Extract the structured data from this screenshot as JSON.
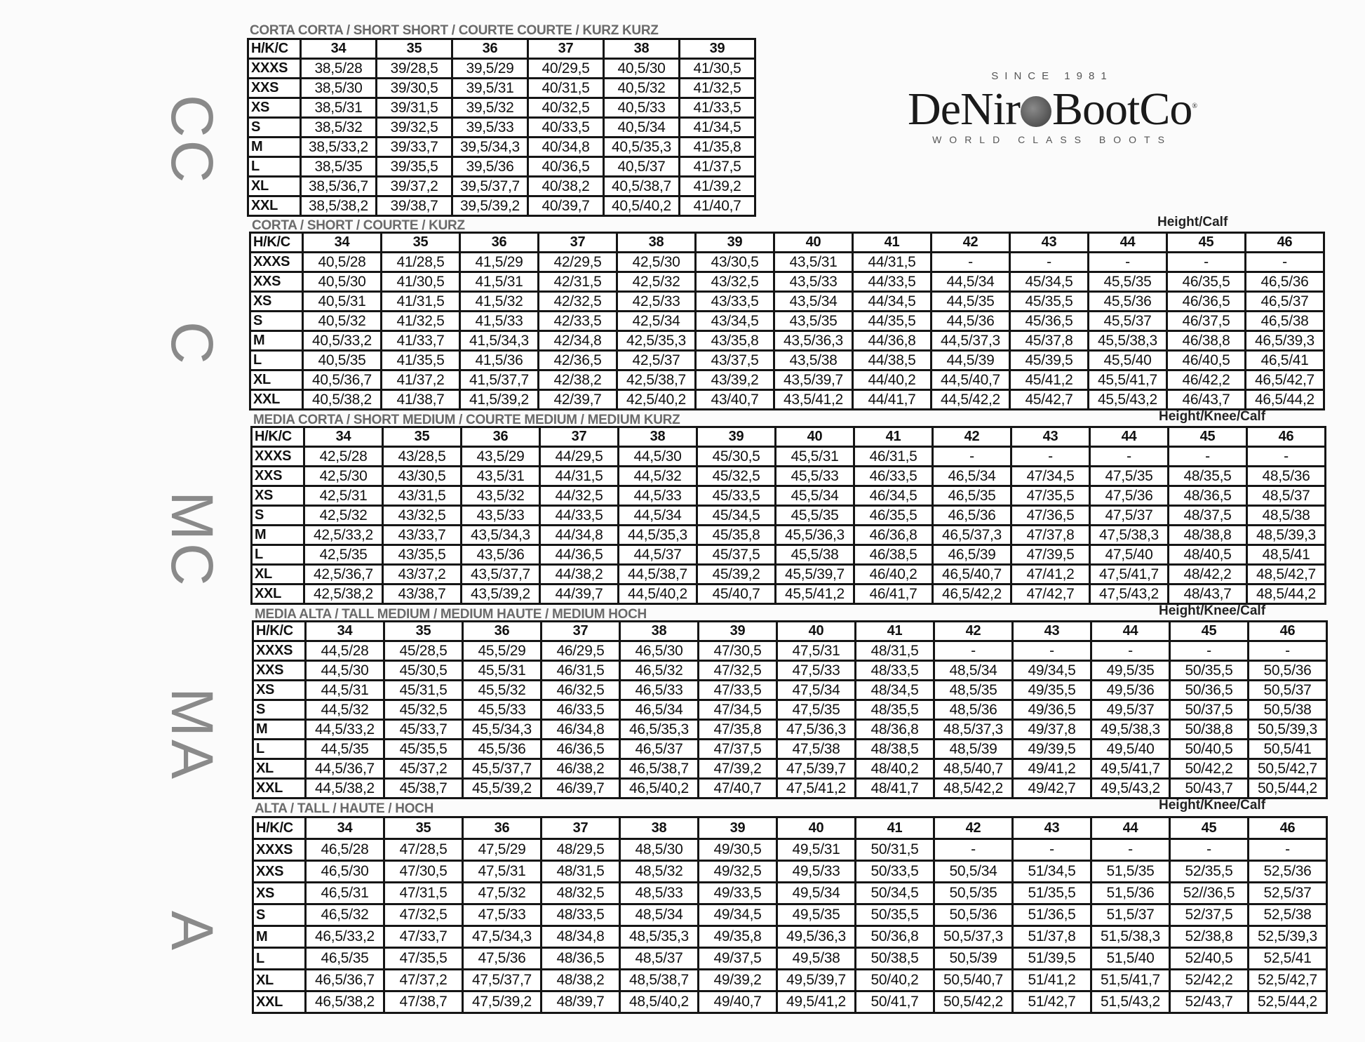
{
  "logo": {
    "since": "SINCE 1981",
    "brand_left": "DeNir",
    "brand_right": "BootCo",
    "tagline": "WORLD CLASS BOOTS"
  },
  "tables": [
    {
      "side_label": "CC",
      "title": "CORTA CORTA / SHORT SHORT / COURTE COURTE / KURZ KURZ",
      "note": "",
      "corner": "H/K/C",
      "columns": [
        "34",
        "35",
        "36",
        "37",
        "38",
        "39"
      ],
      "rows": [
        {
          "size": "XXXS",
          "values": [
            "38,5/28",
            "39/28,5",
            "39,5/29",
            "40/29,5",
            "40,5/30",
            "41/30,5"
          ]
        },
        {
          "size": "XXS",
          "values": [
            "38,5/30",
            "39/30,5",
            "39,5/31",
            "40/31,5",
            "40,5/32",
            "41/32,5"
          ]
        },
        {
          "size": "XS",
          "values": [
            "38,5/31",
            "39/31,5",
            "39,5/32",
            "40/32,5",
            "40,5/33",
            "41/33,5"
          ]
        },
        {
          "size": "S",
          "values": [
            "38,5/32",
            "39/32,5",
            "39,5/33",
            "40/33,5",
            "40,5/34",
            "41/34,5"
          ]
        },
        {
          "size": "M",
          "values": [
            "38,5/33,2",
            "39/33,7",
            "39,5/34,3",
            "40/34,8",
            "40,5/35,3",
            "41/35,8"
          ]
        },
        {
          "size": "L",
          "values": [
            "38,5/35",
            "39/35,5",
            "39,5/36",
            "40/36,5",
            "40,5/37",
            "41/37,5"
          ]
        },
        {
          "size": "XL",
          "values": [
            "38,5/36,7",
            "39/37,2",
            "39,5/37,7",
            "40/38,2",
            "40,5/38,7",
            "41/39,2"
          ]
        },
        {
          "size": "XXL",
          "values": [
            "38,5/38,2",
            "39/38,7",
            "39,5/39,2",
            "40/39,7",
            "40,5/40,2",
            "41/40,7"
          ]
        }
      ]
    },
    {
      "side_label": "C",
      "title": "CORTA / SHORT / COURTE / KURZ",
      "note": "Height/Calf",
      "corner": "H/K/C",
      "columns": [
        "34",
        "35",
        "36",
        "37",
        "38",
        "39",
        "40",
        "41",
        "42",
        "43",
        "44",
        "45",
        "46"
      ],
      "rows": [
        {
          "size": "XXXS",
          "values": [
            "40,5/28",
            "41/28,5",
            "41,5/29",
            "42/29,5",
            "42,5/30",
            "43/30,5",
            "43,5/31",
            "44/31,5",
            "-",
            "-",
            "-",
            "-",
            "-"
          ]
        },
        {
          "size": "XXS",
          "values": [
            "40,5/30",
            "41/30,5",
            "41,5/31",
            "42/31,5",
            "42,5/32",
            "43/32,5",
            "43,5/33",
            "44/33,5",
            "44,5/34",
            "45/34,5",
            "45,5/35",
            "46/35,5",
            "46,5/36"
          ]
        },
        {
          "size": "XS",
          "values": [
            "40,5/31",
            "41/31,5",
            "41,5/32",
            "42/32,5",
            "42,5/33",
            "43/33,5",
            "43,5/34",
            "44/34,5",
            "44,5/35",
            "45/35,5",
            "45,5/36",
            "46/36,5",
            "46,5/37"
          ]
        },
        {
          "size": "S",
          "values": [
            "40,5/32",
            "41/32,5",
            "41,5/33",
            "42/33,5",
            "42,5/34",
            "43/34,5",
            "43,5/35",
            "44/35,5",
            "44,5/36",
            "45/36,5",
            "45,5/37",
            "46/37,5",
            "46,5/38"
          ]
        },
        {
          "size": "M",
          "values": [
            "40,5/33,2",
            "41/33,7",
            "41,5/34,3",
            "42/34,8",
            "42,5/35,3",
            "43/35,8",
            "43,5/36,3",
            "44/36,8",
            "44,5/37,3",
            "45/37,8",
            "45,5/38,3",
            "46/38,8",
            "46,5/39,3"
          ]
        },
        {
          "size": "L",
          "values": [
            "40,5/35",
            "41/35,5",
            "41,5/36",
            "42/36,5",
            "42,5/37",
            "43/37,5",
            "43,5/38",
            "44/38,5",
            "44,5/39",
            "45/39,5",
            "45,5/40",
            "46/40,5",
            "46,5/41"
          ]
        },
        {
          "size": "XL",
          "values": [
            "40,5/36,7",
            "41/37,2",
            "41,5/37,7",
            "42/38,2",
            "42,5/38,7",
            "43/39,2",
            "43,5/39,7",
            "44/40,2",
            "44,5/40,7",
            "45/41,2",
            "45,5/41,7",
            "46/42,2",
            "46,5/42,7"
          ]
        },
        {
          "size": "XXL",
          "values": [
            "40,5/38,2",
            "41/38,7",
            "41,5/39,2",
            "42/39,7",
            "42,5/40,2",
            "43/40,7",
            "43,5/41,2",
            "44/41,7",
            "44,5/42,2",
            "45/42,7",
            "45,5/43,2",
            "46/43,7",
            "46,5/44,2"
          ]
        }
      ]
    },
    {
      "side_label": "MC",
      "title": "MEDIA CORTA / SHORT MEDIUM / COURTE MEDIUM / MEDIUM KURZ",
      "note": "Height/Knee/Calf",
      "corner": "H/K/C",
      "columns": [
        "34",
        "35",
        "36",
        "37",
        "38",
        "39",
        "40",
        "41",
        "42",
        "43",
        "44",
        "45",
        "46"
      ],
      "rows": [
        {
          "size": "XXXS",
          "values": [
            "42,5/28",
            "43/28,5",
            "43,5/29",
            "44/29,5",
            "44,5/30",
            "45/30,5",
            "45,5/31",
            "46/31,5",
            "-",
            "-",
            "-",
            "-",
            "-"
          ]
        },
        {
          "size": "XXS",
          "values": [
            "42,5/30",
            "43/30,5",
            "43,5/31",
            "44/31,5",
            "44,5/32",
            "45/32,5",
            "45,5/33",
            "46/33,5",
            "46,5/34",
            "47/34,5",
            "47,5/35",
            "48/35,5",
            "48,5/36"
          ]
        },
        {
          "size": "XS",
          "values": [
            "42,5/31",
            "43/31,5",
            "43,5/32",
            "44/32,5",
            "44,5/33",
            "45/33,5",
            "45,5/34",
            "46/34,5",
            "46,5/35",
            "47/35,5",
            "47,5/36",
            "48/36,5",
            "48,5/37"
          ]
        },
        {
          "size": "S",
          "values": [
            "42,5/32",
            "43/32,5",
            "43,5/33",
            "44/33,5",
            "44,5/34",
            "45/34,5",
            "45,5/35",
            "46/35,5",
            "46,5/36",
            "47/36,5",
            "47,5/37",
            "48/37,5",
            "48,5/38"
          ]
        },
        {
          "size": "M",
          "values": [
            "42,5/33,2",
            "43/33,7",
            "43,5/34,3",
            "44/34,8",
            "44,5/35,3",
            "45/35,8",
            "45,5/36,3",
            "46/36,8",
            "46,5/37,3",
            "47/37,8",
            "47,5/38,3",
            "48/38,8",
            "48,5/39,3"
          ]
        },
        {
          "size": "L",
          "values": [
            "42,5/35",
            "43/35,5",
            "43,5/36",
            "44/36,5",
            "44,5/37",
            "45/37,5",
            "45,5/38",
            "46/38,5",
            "46,5/39",
            "47/39,5",
            "47,5/40",
            "48/40,5",
            "48,5/41"
          ]
        },
        {
          "size": "XL",
          "values": [
            "42,5/36,7",
            "43/37,2",
            "43,5/37,7",
            "44/38,2",
            "44,5/38,7",
            "45/39,2",
            "45,5/39,7",
            "46/40,2",
            "46,5/40,7",
            "47/41,2",
            "47,5/41,7",
            "48/42,2",
            "48,5/42,7"
          ]
        },
        {
          "size": "XXL",
          "values": [
            "42,5/38,2",
            "43/38,7",
            "43,5/39,2",
            "44/39,7",
            "44,5/40,2",
            "45/40,7",
            "45,5/41,2",
            "46/41,7",
            "46,5/42,2",
            "47/42,7",
            "47,5/43,2",
            "48/43,7",
            "48,5/44,2"
          ]
        }
      ]
    },
    {
      "side_label": "MA",
      "title": "MEDIA ALTA / TALL MEDIUM / MEDIUM HAUTE / MEDIUM HOCH",
      "note": "Height/Knee/Calf",
      "corner": "H/K/C",
      "columns": [
        "34",
        "35",
        "36",
        "37",
        "38",
        "39",
        "40",
        "41",
        "42",
        "43",
        "44",
        "45",
        "46"
      ],
      "rows": [
        {
          "size": "XXXS",
          "values": [
            "44,5/28",
            "45/28,5",
            "45,5/29",
            "46/29,5",
            "46,5/30",
            "47/30,5",
            "47,5/31",
            "48/31,5",
            "-",
            "-",
            "-",
            "-",
            "-"
          ]
        },
        {
          "size": "XXS",
          "values": [
            "44,5/30",
            "45/30,5",
            "45,5/31",
            "46/31,5",
            "46,5/32",
            "47/32,5",
            "47,5/33",
            "48/33,5",
            "48,5/34",
            "49/34,5",
            "49,5/35",
            "50/35,5",
            "50,5/36"
          ]
        },
        {
          "size": "XS",
          "values": [
            "44,5/31",
            "45/31,5",
            "45,5/32",
            "46/32,5",
            "46,5/33",
            "47/33,5",
            "47,5/34",
            "48/34,5",
            "48,5/35",
            "49/35,5",
            "49,5/36",
            "50/36,5",
            "50,5/37"
          ]
        },
        {
          "size": "S",
          "values": [
            "44,5/32",
            "45/32,5",
            "45,5/33",
            "46/33,5",
            "46,5/34",
            "47/34,5",
            "47,5/35",
            "48/35,5",
            "48,5/36",
            "49/36,5",
            "49,5/37",
            "50/37,5",
            "50,5/38"
          ]
        },
        {
          "size": "M",
          "values": [
            "44,5/33,2",
            "45/33,7",
            "45,5/34,3",
            "46/34,8",
            "46,5/35,3",
            "47/35,8",
            "47,5/36,3",
            "48/36,8",
            "48,5/37,3",
            "49/37,8",
            "49,5/38,3",
            "50/38,8",
            "50,5/39,3"
          ]
        },
        {
          "size": "L",
          "values": [
            "44,5/35",
            "45/35,5",
            "45,5/36",
            "46/36,5",
            "46,5/37",
            "47/37,5",
            "47,5/38",
            "48/38,5",
            "48,5/39",
            "49/39,5",
            "49,5/40",
            "50/40,5",
            "50,5/41"
          ]
        },
        {
          "size": "XL",
          "values": [
            "44,5/36,7",
            "45/37,2",
            "45,5/37,7",
            "46/38,2",
            "46,5/38,7",
            "47/39,2",
            "47,5/39,7",
            "48/40,2",
            "48,5/40,7",
            "49/41,2",
            "49,5/41,7",
            "50/42,2",
            "50,5/42,7"
          ]
        },
        {
          "size": "XXL",
          "values": [
            "44,5/38,2",
            "45/38,7",
            "45,5/39,2",
            "46/39,7",
            "46,5/40,2",
            "47/40,7",
            "47,5/41,2",
            "48/41,7",
            "48,5/42,2",
            "49/42,7",
            "49,5/43,2",
            "50/43,7",
            "50,5/44,2"
          ]
        }
      ]
    },
    {
      "side_label": "A",
      "title": "ALTA / TALL / HAUTE / HOCH",
      "note": "Height/Knee/Calf",
      "corner": "H/K/C",
      "columns": [
        "34",
        "35",
        "36",
        "37",
        "38",
        "39",
        "40",
        "41",
        "42",
        "43",
        "44",
        "45",
        "46"
      ],
      "rows": [
        {
          "size": "XXXS",
          "values": [
            "46,5/28",
            "47/28,5",
            "47,5/29",
            "48/29,5",
            "48,5/30",
            "49/30,5",
            "49,5/31",
            "50/31,5",
            "-",
            "-",
            "-",
            "-",
            "-"
          ]
        },
        {
          "size": "XXS",
          "values": [
            "46,5/30",
            "47/30,5",
            "47,5/31",
            "48/31,5",
            "48,5/32",
            "49/32,5",
            "49,5/33",
            "50/33,5",
            "50,5/34",
            "51/34,5",
            "51,5/35",
            "52/35,5",
            "52,5/36"
          ]
        },
        {
          "size": "XS",
          "values": [
            "46,5/31",
            "47/31,5",
            "47,5/32",
            "48/32,5",
            "48,5/33",
            "49/33,5",
            "49,5/34",
            "50/34,5",
            "50,5/35",
            "51/35,5",
            "51,5/36",
            "52//36,5",
            "52,5/37"
          ]
        },
        {
          "size": "S",
          "values": [
            "46,5/32",
            "47/32,5",
            "47,5/33",
            "48/33,5",
            "48,5/34",
            "49/34,5",
            "49,5/35",
            "50/35,5",
            "50,5/36",
            "51/36,5",
            "51,5/37",
            "52/37,5",
            "52,5/38"
          ]
        },
        {
          "size": "M",
          "values": [
            "46,5/33,2",
            "47/33,7",
            "47,5/34,3",
            "48/34,8",
            "48,5/35,3",
            "49/35,8",
            "49,5/36,3",
            "50/36,8",
            "50,5/37,3",
            "51/37,8",
            "51,5/38,3",
            "52/38,8",
            "52,5/39,3"
          ]
        },
        {
          "size": "L",
          "values": [
            "46,5/35",
            "47/35,5",
            "47,5/36",
            "48/36,5",
            "48,5/37",
            "49/37,5",
            "49,5/38",
            "50/38,5",
            "50,5/39",
            "51/39,5",
            "51,5/40",
            "52/40,5",
            "52,5/41"
          ]
        },
        {
          "size": "XL",
          "values": [
            "46,5/36,7",
            "47/37,2",
            "47,5/37,7",
            "48/38,2",
            "48,5/38,7",
            "49/39,2",
            "49,5/39,7",
            "50/40,2",
            "50,5/40,7",
            "51/41,2",
            "51,5/41,7",
            "52/42,2",
            "52,5/42,7"
          ]
        },
        {
          "size": "XXL",
          "values": [
            "46,5/38,2",
            "47/38,7",
            "47,5/39,2",
            "48/39,7",
            "48,5/40,2",
            "49/40,7",
            "49,5/41,2",
            "50/41,7",
            "50,5/42,2",
            "51/42,7",
            "51,5/43,2",
            "52/43,7",
            "52,5/44,2"
          ]
        }
      ]
    }
  ]
}
